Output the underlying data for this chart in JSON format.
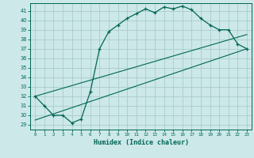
{
  "title": "",
  "xlabel": "Humidex (Indice chaleur)",
  "bg_color": "#cce8e8",
  "grid_color": "#aacccc",
  "line_color": "#006655",
  "xlim": [
    -0.5,
    23.5
  ],
  "ylim": [
    28.5,
    41.8
  ],
  "yticks": [
    29,
    30,
    31,
    32,
    33,
    34,
    35,
    36,
    37,
    38,
    39,
    40,
    41
  ],
  "xticks": [
    0,
    1,
    2,
    3,
    4,
    5,
    6,
    7,
    8,
    9,
    10,
    11,
    12,
    13,
    14,
    15,
    16,
    17,
    18,
    19,
    20,
    21,
    22,
    23
  ],
  "main_curve_x": [
    0,
    1,
    2,
    3,
    4,
    5,
    6,
    7,
    8,
    9,
    10,
    11,
    12,
    13,
    14,
    15,
    16,
    17,
    18,
    19,
    20,
    21,
    22,
    23
  ],
  "main_curve_y": [
    32.0,
    31.0,
    30.0,
    30.0,
    29.2,
    29.6,
    32.5,
    37.0,
    38.8,
    39.5,
    40.2,
    40.7,
    41.2,
    40.8,
    41.4,
    41.2,
    41.5,
    41.1,
    40.2,
    39.5,
    39.0,
    39.0,
    37.5,
    37.0
  ],
  "line2_x": [
    0,
    23
  ],
  "line2_y": [
    32.0,
    38.5
  ],
  "line3_x": [
    0,
    23
  ],
  "line3_y": [
    29.5,
    37.0
  ]
}
